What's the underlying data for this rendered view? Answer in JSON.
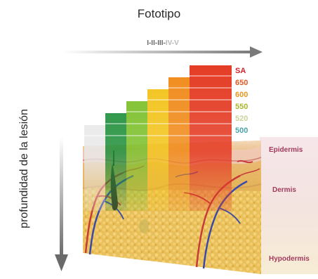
{
  "title": "Fototipo",
  "phototype_scale": {
    "prefix": "I-II-III-",
    "light_suffix": "IV-V",
    "colors": {
      "dark": "#6a6a6a",
      "light": "#b9b9b9"
    }
  },
  "depth_label": "profundidad de la lesión",
  "wavelengths": [
    {
      "label": "SA",
      "color": "#d2232a"
    },
    {
      "label": "650",
      "color": "#e05a22"
    },
    {
      "label": "600",
      "color": "#e8961e"
    },
    {
      "label": "550",
      "color": "#a8b52a"
    },
    {
      "label": "520",
      "color": "#c9d49a"
    },
    {
      "label": "500",
      "color": "#4aa3a8"
    }
  ],
  "bands": [
    {
      "color": "#e8e8e8"
    },
    {
      "color": "#1f8f3a"
    },
    {
      "color": "#7cbf2a"
    },
    {
      "color": "#f2c31a"
    },
    {
      "color": "#f08a1a"
    },
    {
      "color": "#e43a22"
    }
  ],
  "skin_layers": [
    {
      "name": "Epidermis"
    },
    {
      "name": "Dermis"
    },
    {
      "name": "Hypodermis"
    }
  ],
  "colors": {
    "axis_arrow": "#8a8a8a",
    "layer_label": "#a23b5e",
    "skin": "#e3b254",
    "vessel_red": "#c73a3a",
    "vessel_blue": "#3a4aa8"
  }
}
